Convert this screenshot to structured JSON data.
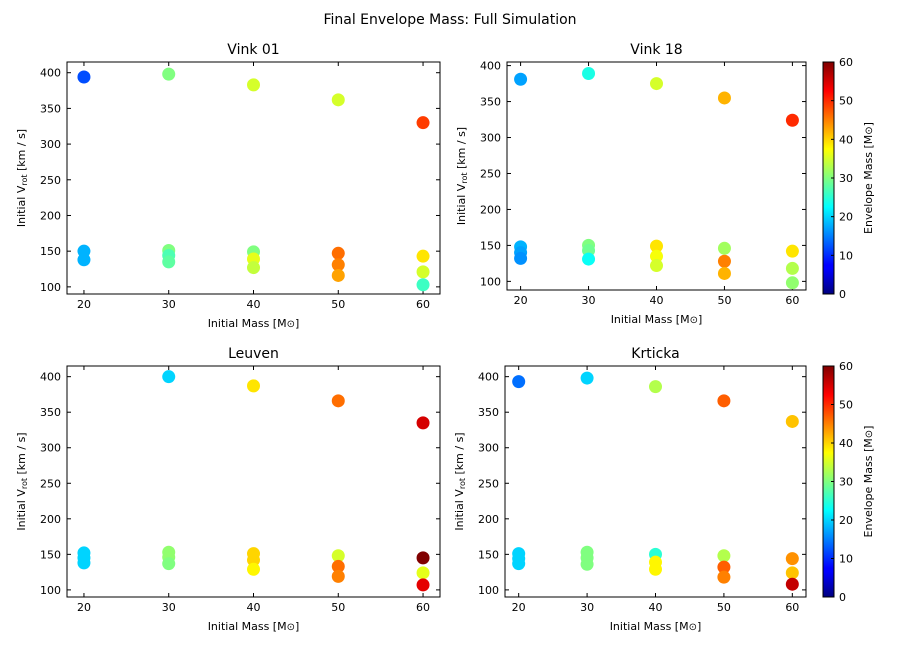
{
  "suptitle": "Final Envelope Mass: Full Simulation",
  "colorbar": {
    "label_text": "Envelope Mass [M",
    "label_sym": "⊙",
    "label_end": "]",
    "range": [
      0,
      60
    ],
    "ticks": [
      "0",
      "10",
      "20",
      "30",
      "40",
      "50",
      "60"
    ],
    "colormap": "jet"
  },
  "axis_text": {
    "xlabel_text": "Initial Mass [M",
    "xlabel_sym": "⊙",
    "xlabel_end": "]",
    "ylabel_pre": "Initial V",
    "ylabel_sub": "rot",
    "ylabel_post": " [km / s]"
  },
  "chart_data": [
    {
      "type": "scatter",
      "title": "Vink 01",
      "x_ticks": [
        "20",
        "30",
        "40",
        "50",
        "60"
      ],
      "y_ticks": [
        "100",
        "150",
        "200",
        "250",
        "300",
        "350",
        "400"
      ],
      "xlim": [
        18,
        62
      ],
      "ylim": [
        90,
        415
      ],
      "points": [
        {
          "x": 20,
          "y": 394,
          "c": 12
        },
        {
          "x": 20,
          "y": 150,
          "c": 18
        },
        {
          "x": 20,
          "y": 138,
          "c": 18
        },
        {
          "x": 30,
          "y": 398,
          "c": 30
        },
        {
          "x": 30,
          "y": 151,
          "c": 30
        },
        {
          "x": 30,
          "y": 144,
          "c": 27
        },
        {
          "x": 30,
          "y": 135,
          "c": 28
        },
        {
          "x": 40,
          "y": 383,
          "c": 35
        },
        {
          "x": 40,
          "y": 149,
          "c": 30
        },
        {
          "x": 40,
          "y": 139,
          "c": 36
        },
        {
          "x": 40,
          "y": 127,
          "c": 34
        },
        {
          "x": 50,
          "y": 362,
          "c": 35
        },
        {
          "x": 50,
          "y": 147,
          "c": 46
        },
        {
          "x": 50,
          "y": 131,
          "c": 45
        },
        {
          "x": 50,
          "y": 116,
          "c": 43
        },
        {
          "x": 60,
          "y": 330,
          "c": 49
        },
        {
          "x": 60,
          "y": 143,
          "c": 39
        },
        {
          "x": 60,
          "y": 121,
          "c": 35
        },
        {
          "x": 60,
          "y": 103,
          "c": 26
        }
      ]
    },
    {
      "type": "scatter",
      "title": "Vink 18",
      "x_ticks": [
        "20",
        "30",
        "40",
        "50",
        "60"
      ],
      "y_ticks": [
        "100",
        "150",
        "200",
        "250",
        "300",
        "350",
        "400"
      ],
      "xlim": [
        18,
        62
      ],
      "ylim": [
        88,
        405
      ],
      "points": [
        {
          "x": 20,
          "y": 381,
          "c": 17
        },
        {
          "x": 20,
          "y": 148,
          "c": 18
        },
        {
          "x": 20,
          "y": 140,
          "c": 17
        },
        {
          "x": 20,
          "y": 132,
          "c": 16
        },
        {
          "x": 30,
          "y": 389,
          "c": 24
        },
        {
          "x": 30,
          "y": 150,
          "c": 30
        },
        {
          "x": 30,
          "y": 143,
          "c": 29
        },
        {
          "x": 30,
          "y": 131,
          "c": 23
        },
        {
          "x": 40,
          "y": 375,
          "c": 35
        },
        {
          "x": 40,
          "y": 149,
          "c": 39
        },
        {
          "x": 40,
          "y": 135,
          "c": 37
        },
        {
          "x": 40,
          "y": 122,
          "c": 35
        },
        {
          "x": 50,
          "y": 355,
          "c": 42
        },
        {
          "x": 50,
          "y": 146,
          "c": 32
        },
        {
          "x": 50,
          "y": 128,
          "c": 45
        },
        {
          "x": 50,
          "y": 111,
          "c": 42
        },
        {
          "x": 60,
          "y": 324,
          "c": 50
        },
        {
          "x": 60,
          "y": 142,
          "c": 39
        },
        {
          "x": 60,
          "y": 118,
          "c": 33
        },
        {
          "x": 60,
          "y": 98,
          "c": 31
        }
      ]
    },
    {
      "type": "scatter",
      "title": "Leuven",
      "x_ticks": [
        "20",
        "30",
        "40",
        "50",
        "60"
      ],
      "y_ticks": [
        "100",
        "150",
        "200",
        "250",
        "300",
        "350",
        "400"
      ],
      "xlim": [
        18,
        62
      ],
      "ylim": [
        90,
        415
      ],
      "points": [
        {
          "x": 20,
          "y": 152,
          "c": 20
        },
        {
          "x": 20,
          "y": 145,
          "c": 20
        },
        {
          "x": 20,
          "y": 138,
          "c": 20
        },
        {
          "x": 30,
          "y": 400,
          "c": 20
        },
        {
          "x": 30,
          "y": 153,
          "c": 31
        },
        {
          "x": 30,
          "y": 146,
          "c": 31
        },
        {
          "x": 30,
          "y": 137,
          "c": 30
        },
        {
          "x": 40,
          "y": 387,
          "c": 39
        },
        {
          "x": 40,
          "y": 151,
          "c": 40
        },
        {
          "x": 40,
          "y": 142,
          "c": 40
        },
        {
          "x": 40,
          "y": 129,
          "c": 38
        },
        {
          "x": 50,
          "y": 366,
          "c": 46
        },
        {
          "x": 50,
          "y": 148,
          "c": 35
        },
        {
          "x": 50,
          "y": 133,
          "c": 46
        },
        {
          "x": 50,
          "y": 119,
          "c": 45
        },
        {
          "x": 60,
          "y": 335,
          "c": 55
        },
        {
          "x": 60,
          "y": 145,
          "c": 60
        },
        {
          "x": 60,
          "y": 124,
          "c": 36
        },
        {
          "x": 60,
          "y": 107,
          "c": 54
        }
      ]
    },
    {
      "type": "scatter",
      "title": "Krticka",
      "x_ticks": [
        "20",
        "30",
        "40",
        "50",
        "60"
      ],
      "y_ticks": [
        "100",
        "150",
        "200",
        "250",
        "300",
        "350",
        "400"
      ],
      "xlim": [
        18,
        62
      ],
      "ylim": [
        90,
        415
      ],
      "points": [
        {
          "x": 20,
          "y": 393,
          "c": 14
        },
        {
          "x": 20,
          "y": 151,
          "c": 20
        },
        {
          "x": 20,
          "y": 144,
          "c": 20
        },
        {
          "x": 20,
          "y": 137,
          "c": 20
        },
        {
          "x": 30,
          "y": 398,
          "c": 20
        },
        {
          "x": 30,
          "y": 153,
          "c": 30
        },
        {
          "x": 30,
          "y": 145,
          "c": 30
        },
        {
          "x": 30,
          "y": 136,
          "c": 30
        },
        {
          "x": 40,
          "y": 386,
          "c": 33
        },
        {
          "x": 40,
          "y": 150,
          "c": 25
        },
        {
          "x": 40,
          "y": 139,
          "c": 38
        },
        {
          "x": 40,
          "y": 129,
          "c": 38
        },
        {
          "x": 50,
          "y": 366,
          "c": 47
        },
        {
          "x": 50,
          "y": 148,
          "c": 33
        },
        {
          "x": 50,
          "y": 132,
          "c": 47
        },
        {
          "x": 50,
          "y": 118,
          "c": 45
        },
        {
          "x": 60,
          "y": 337,
          "c": 41
        },
        {
          "x": 60,
          "y": 144,
          "c": 44
        },
        {
          "x": 60,
          "y": 124,
          "c": 41
        },
        {
          "x": 60,
          "y": 108,
          "c": 56
        }
      ]
    }
  ]
}
